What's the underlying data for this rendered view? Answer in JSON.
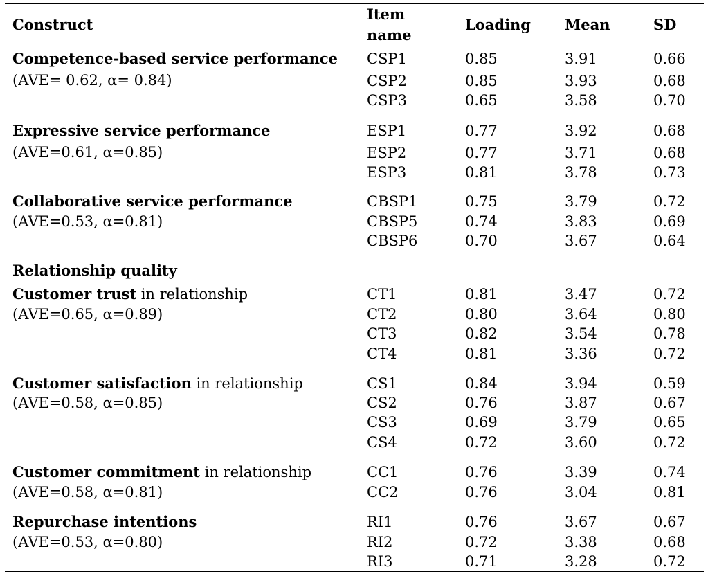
{
  "table": {
    "headers": {
      "construct": "Construct",
      "item_name_line1": "Item",
      "item_name_line2": "name",
      "loading": "Loading",
      "mean": "Mean",
      "sd": "SD"
    },
    "rows": [
      {
        "item": "CSP1",
        "loading": "0.85",
        "mean": "3.91",
        "sd": "0.66"
      },
      {
        "item": "CSP2",
        "loading": "0.85",
        "mean": "3.93",
        "sd": "0.68"
      },
      {
        "item": "CSP3",
        "loading": "0.65",
        "mean": "3.58",
        "sd": "0.70"
      },
      {
        "item": "ESP1",
        "loading": "0.77",
        "mean": "3.92",
        "sd": "0.68"
      },
      {
        "item": "ESP2",
        "loading": "0.77",
        "mean": "3.71",
        "sd": "0.68"
      },
      {
        "item": "ESP3",
        "loading": "0.81",
        "mean": "3.78",
        "sd": "0.73"
      },
      {
        "item": "CBSP1",
        "loading": "0.75",
        "mean": "3.79",
        "sd": "0.72"
      },
      {
        "item": "CBSP5",
        "loading": "0.74",
        "mean": "3.83",
        "sd": "0.69"
      },
      {
        "item": "CBSP6",
        "loading": "0.70",
        "mean": "3.67",
        "sd": "0.64"
      },
      {
        "item": "CT1",
        "loading": "0.81",
        "mean": "3.47",
        "sd": "0.72"
      },
      {
        "item": "CT2",
        "loading": "0.80",
        "mean": "3.64",
        "sd": "0.80"
      },
      {
        "item": "CT3",
        "loading": "0.82",
        "mean": "3.54",
        "sd": "0.78"
      },
      {
        "item": "CT4",
        "loading": "0.81",
        "mean": "3.36",
        "sd": "0.72"
      },
      {
        "item": "CS1",
        "loading": "0.84",
        "mean": "3.94",
        "sd": "0.59"
      },
      {
        "item": "CS2",
        "loading": "0.76",
        "mean": "3.87",
        "sd": "0.67"
      },
      {
        "item": "CS3",
        "loading": "0.69",
        "mean": "3.79",
        "sd": "0.65"
      },
      {
        "item": "CS4",
        "loading": "0.72",
        "mean": "3.60",
        "sd": "0.72"
      },
      {
        "item": "CC1",
        "loading": "0.76",
        "mean": "3.39",
        "sd": "0.74"
      },
      {
        "item": "CC2",
        "loading": "0.76",
        "mean": "3.04",
        "sd": "0.81"
      },
      {
        "item": "RI1",
        "loading": "0.76",
        "mean": "3.67",
        "sd": "0.67"
      },
      {
        "item": "RI2",
        "loading": "0.72",
        "mean": "3.38",
        "sd": "0.68"
      },
      {
        "item": "RI3",
        "loading": "0.71",
        "mean": "3.28",
        "sd": "0.72"
      }
    ],
    "constructs": [
      {
        "bold": "Competence-based service performance",
        "rest": "",
        "stats": "(AVE= 0.62, α= 0.84)"
      },
      {
        "bold": "Expressive service performance",
        "rest": "",
        "stats": "(AVE=0.61, α=0.85)"
      },
      {
        "bold": "Collaborative service performance",
        "rest": "",
        "stats": "(AVE=0.53, α=0.81)"
      },
      {
        "bold": "Customer trust",
        "rest": " in relationship",
        "stats": "(AVE=0.65, α=0.89)"
      },
      {
        "bold": "Customer satisfaction",
        "rest": " in relationship",
        "stats": "(AVE=0.58, α=0.85)"
      },
      {
        "bold": "Customer commitment",
        "rest": " in relationship",
        "stats": "(AVE=0.58, α=0.81)"
      },
      {
        "bold": "Repurchase intentions",
        "rest": "",
        "stats": "(AVE=0.53, α=0.80)"
      }
    ],
    "section_heading": "Relationship quality"
  }
}
